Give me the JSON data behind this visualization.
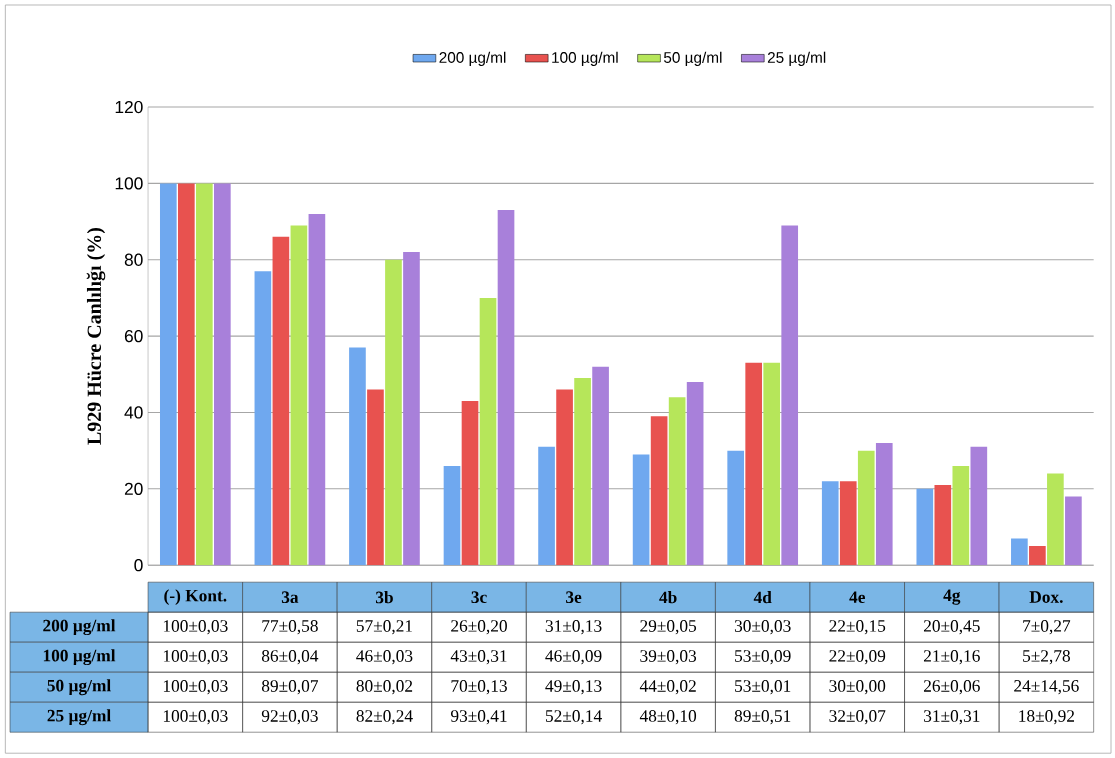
{
  "chart_data": {
    "type": "bar",
    "ylabel": "L929 Hücre Canlılığı (%)",
    "categories": [
      "(-) Kont.",
      "3a",
      "3b",
      "3c",
      "3e",
      "4b",
      "4d",
      "4e",
      "4g",
      "Dox."
    ],
    "series": [
      {
        "name": "200 µg/ml",
        "color": "#6fa8ef",
        "values": [
          100,
          77,
          57,
          26,
          31,
          29,
          30,
          22,
          20,
          7
        ],
        "value_labels": [
          "100±0,03",
          "77±0,58",
          "57±0,21",
          "26±0,20",
          "31±0,13",
          "29±0,05",
          "30±0,03",
          "22±0,15",
          "20±0,45",
          "7±0,27"
        ]
      },
      {
        "name": "100 µg/ml",
        "color": "#e8524f",
        "values": [
          100,
          86,
          46,
          43,
          46,
          39,
          53,
          22,
          21,
          5
        ],
        "value_labels": [
          "100±0,03",
          "86±0,04",
          "46±0,03",
          "43±0,31",
          "46±0,09",
          "39±0,03",
          "53±0,09",
          "22±0,09",
          "21±0,16",
          "5±2,78"
        ]
      },
      {
        "name": "50 µg/ml",
        "color": "#b6e65a",
        "values": [
          100,
          89,
          80,
          70,
          49,
          44,
          53,
          30,
          26,
          24
        ],
        "value_labels": [
          "100±0,03",
          "89±0,07",
          "80±0,02",
          "70±0,13",
          "49±0,13",
          "44±0,02",
          "53±0,01",
          "30±0,00",
          "26±0,06",
          "24±14,56"
        ]
      },
      {
        "name": "25 µg/ml",
        "color": "#a880da",
        "values": [
          100,
          92,
          82,
          93,
          52,
          48,
          89,
          32,
          31,
          18
        ],
        "value_labels": [
          "100±0,03",
          "92±0,03",
          "82±0,24",
          "93±0,41",
          "52±0,14",
          "48±0,10",
          "89±0,51",
          "32±0,07",
          "31±0,31",
          "18±0,92"
        ]
      }
    ],
    "ylim": [
      0,
      120
    ],
    "yticks": [
      0,
      20,
      40,
      60,
      80,
      100,
      120
    ],
    "grid": "y",
    "legend": "top"
  }
}
